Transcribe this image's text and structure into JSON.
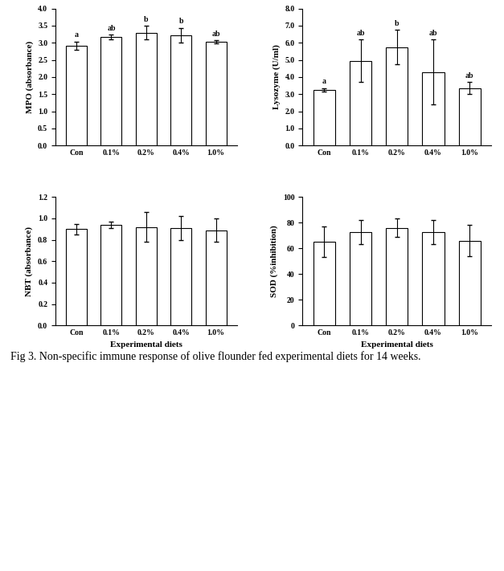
{
  "caption": "Fig 3. Non-specific immune response of olive flounder fed experimental diets for 14 weeks.",
  "chart_data": [
    {
      "type": "bar",
      "y_label": "MPO (absorbance)",
      "categories": [
        "Con",
        "0.1%",
        "0.2%",
        "0.4%",
        "1.0%"
      ],
      "values": [
        2.92,
        3.17,
        3.3,
        3.22,
        3.03
      ],
      "errors": [
        0.12,
        0.07,
        0.2,
        0.22,
        0.04
      ],
      "annotations": [
        "a",
        "ab",
        "b",
        "b",
        "ab"
      ],
      "color": "#ffffff",
      "ylim": [
        0,
        4.0
      ],
      "yticks": [
        {
          "value": 0,
          "label": "0.0"
        },
        0.5,
        {
          "value": 1,
          "label": "1.0"
        },
        1.5,
        {
          "value": 2,
          "label": "2.0"
        },
        2.5,
        {
          "value": 3,
          "label": "3.0"
        },
        3.5,
        {
          "value": 4,
          "label": "4.0"
        }
      ],
      "grid": false
    },
    {
      "type": "bar",
      "y_label": "Lysozyme (U/ml)",
      "categories": [
        "Con",
        "0.1%",
        "0.2%",
        "0.4%",
        "1.0%"
      ],
      "values": [
        3.25,
        4.95,
        5.75,
        4.3,
        3.35
      ],
      "errors": [
        0.1,
        1.25,
        1.0,
        1.9,
        0.35
      ],
      "annotations": [
        "a",
        "ab",
        "b",
        "ab",
        "ab"
      ],
      "color": "#ffffff",
      "ylim": [
        0,
        8.0
      ],
      "yticks": [
        {
          "value": 0,
          "label": "0.0"
        },
        {
          "value": 1,
          "label": "1.0"
        },
        {
          "value": 2,
          "label": "2.0"
        },
        {
          "value": 3,
          "label": "3.0"
        },
        {
          "value": 4,
          "label": "4.0"
        },
        {
          "value": 5,
          "label": "5.0"
        },
        {
          "value": 6,
          "label": "6.0"
        },
        {
          "value": 7,
          "label": "7.0"
        },
        {
          "value": 8,
          "label": "8.0"
        }
      ],
      "grid": false
    },
    {
      "type": "bar",
      "y_label": "NBT (absorbance)",
      "x_label": "Experimental diets",
      "categories": [
        "Con",
        "0.1%",
        "0.2%",
        "0.4%",
        "1.0%"
      ],
      "values": [
        0.9,
        0.94,
        0.92,
        0.91,
        0.89
      ],
      "errors": [
        0.05,
        0.03,
        0.14,
        0.11,
        0.11
      ],
      "color": "#ffffff",
      "ylim": [
        0,
        1.2
      ],
      "yticks": [
        {
          "value": 0,
          "label": "0.0"
        },
        0.2,
        0.4,
        0.6,
        0.8,
        {
          "value": 1,
          "label": "1.0"
        },
        1.2
      ],
      "grid": false
    },
    {
      "type": "bar",
      "y_label": "SOD (%inhibition)",
      "x_label": "Experimental diets",
      "categories": [
        "Con",
        "0.1%",
        "0.2%",
        "0.4%",
        "1.0%"
      ],
      "values": [
        65,
        72.5,
        76,
        72.5,
        66
      ],
      "errors": [
        12,
        9.5,
        7,
        9.5,
        12
      ],
      "color": "#ffffff",
      "ylim": [
        0,
        100
      ],
      "yticks": [
        0,
        20,
        40,
        60,
        80,
        100
      ],
      "grid": false
    }
  ]
}
